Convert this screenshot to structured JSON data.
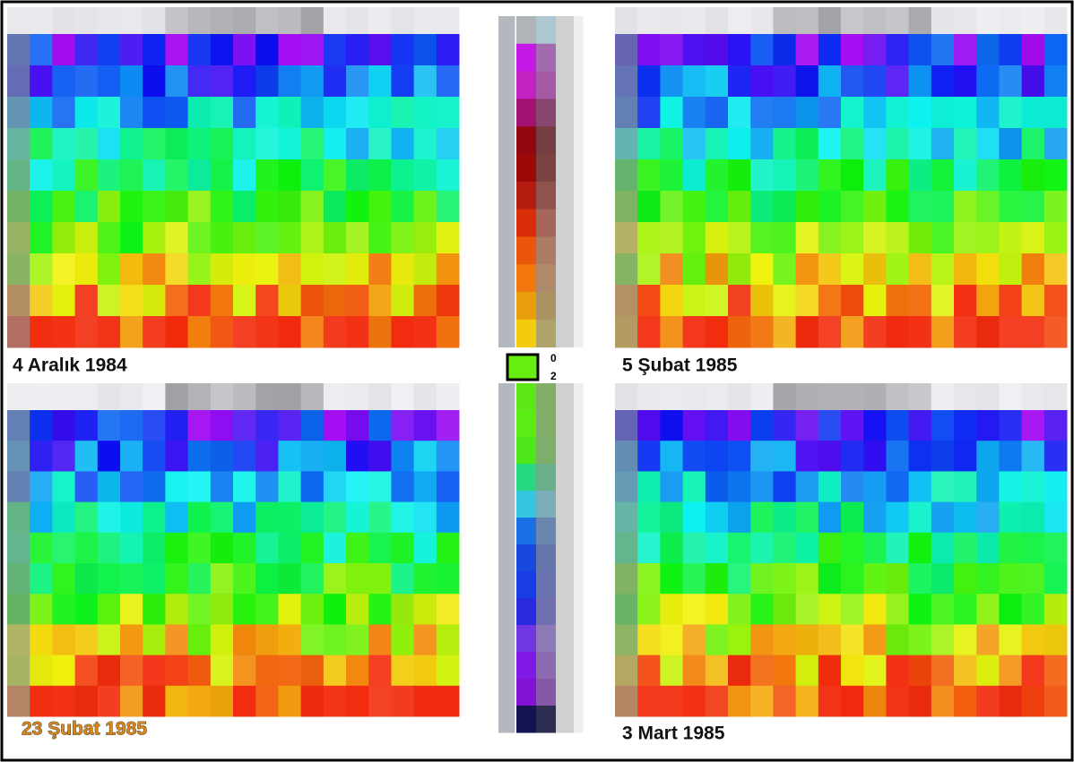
{
  "panels": [
    {
      "label": "4 Aralık 1984"
    },
    {
      "label": "5 Şubat 1985"
    },
    {
      "label": "23 Şubat 1985"
    },
    {
      "label": "3 Mart 1985"
    }
  ],
  "legend": {
    "labels": [
      "0",
      "2"
    ]
  }
}
